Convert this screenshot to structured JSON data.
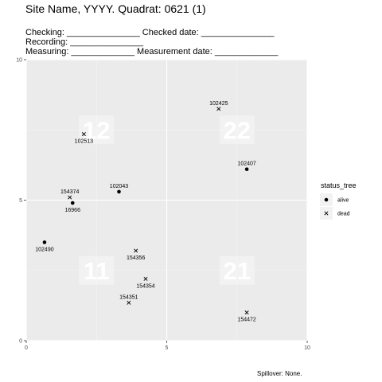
{
  "header": {
    "title": "Site Name, YYYY. Quadrat: 0621 (1)",
    "lines": [
      "Checking: _______________ Checked date: _______________",
      "Recording: _______________",
      "Measuring: _____________ Measurement date: _____________"
    ]
  },
  "footer": "Spillover: None.",
  "colors": {
    "panel": "#ebebeb",
    "grid_major": "#ffffff",
    "grid_minor": "#f5f5f5",
    "point": "#000000"
  },
  "chart_data": {
    "type": "scatter",
    "xlim": [
      0,
      10
    ],
    "ylim": [
      0,
      10
    ],
    "x_ticks": [
      0,
      5,
      10
    ],
    "y_ticks": [
      0,
      5,
      10
    ],
    "grid": true,
    "legend": {
      "title": "status_tree",
      "placement": "right",
      "entries": [
        {
          "label": "alive",
          "marker": "circle"
        },
        {
          "label": "dead",
          "marker": "x"
        }
      ]
    },
    "quadrat_labels": [
      {
        "label": "12",
        "x": 2.5,
        "y": 7.5
      },
      {
        "label": "22",
        "x": 7.5,
        "y": 7.5
      },
      {
        "label": "11",
        "x": 2.5,
        "y": 2.5
      },
      {
        "label": "21",
        "x": 7.5,
        "y": 2.5
      }
    ],
    "points": [
      {
        "id": "102425",
        "x": 6.85,
        "y": 8.25,
        "status": "dead",
        "label_pos": "above"
      },
      {
        "id": "102513",
        "x": 2.05,
        "y": 7.35,
        "status": "dead",
        "label_pos": "below"
      },
      {
        "id": "102407",
        "x": 7.85,
        "y": 6.1,
        "status": "alive",
        "label_pos": "above"
      },
      {
        "id": "102043",
        "x": 3.3,
        "y": 5.3,
        "status": "alive",
        "label_pos": "above"
      },
      {
        "id": "154374",
        "x": 1.55,
        "y": 5.1,
        "status": "dead",
        "label_pos": "above"
      },
      {
        "id": "16966",
        "x": 1.65,
        "y": 4.9,
        "status": "alive",
        "label_pos": "below"
      },
      {
        "id": "102490",
        "x": 0.65,
        "y": 3.5,
        "status": "alive",
        "label_pos": "below"
      },
      {
        "id": "154356",
        "x": 3.9,
        "y": 3.2,
        "status": "dead",
        "label_pos": "below"
      },
      {
        "id": "154354",
        "x": 4.25,
        "y": 2.2,
        "status": "dead",
        "label_pos": "below"
      },
      {
        "id": "154351",
        "x": 3.65,
        "y": 1.35,
        "status": "dead",
        "label_pos": "above"
      },
      {
        "id": "154472",
        "x": 7.85,
        "y": 1.0,
        "status": "dead",
        "label_pos": "below"
      }
    ]
  }
}
